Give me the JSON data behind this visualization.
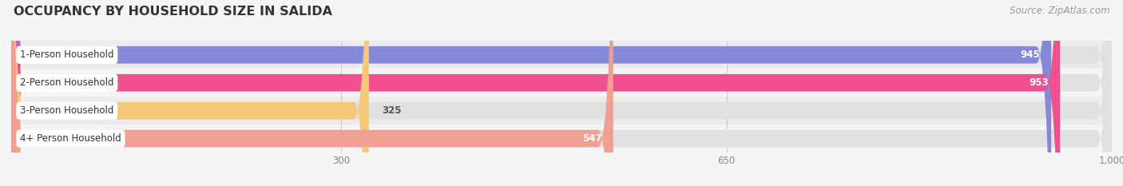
{
  "title": "OCCUPANCY BY HOUSEHOLD SIZE IN SALIDA",
  "source": "Source: ZipAtlas.com",
  "categories": [
    "1-Person Household",
    "2-Person Household",
    "3-Person Household",
    "4+ Person Household"
  ],
  "values": [
    945,
    953,
    325,
    547
  ],
  "bar_colors": [
    "#8888d8",
    "#f05090",
    "#f5c87a",
    "#f0a090"
  ],
  "track_color": "#e0e0e0",
  "label_bg": "#ffffff",
  "xlim_max": 1000,
  "xticks": [
    300,
    650,
    1000
  ],
  "xticklabels": [
    "300",
    "650",
    "1,000"
  ],
  "bar_height": 0.62,
  "row_bg_colors": [
    "#ececec",
    "#f5f5f5"
  ],
  "background_color": "#f5f5f5",
  "title_fontsize": 11.5,
  "label_fontsize": 8.5,
  "value_fontsize": 8.5,
  "source_fontsize": 8.5,
  "tick_fontsize": 8.5
}
